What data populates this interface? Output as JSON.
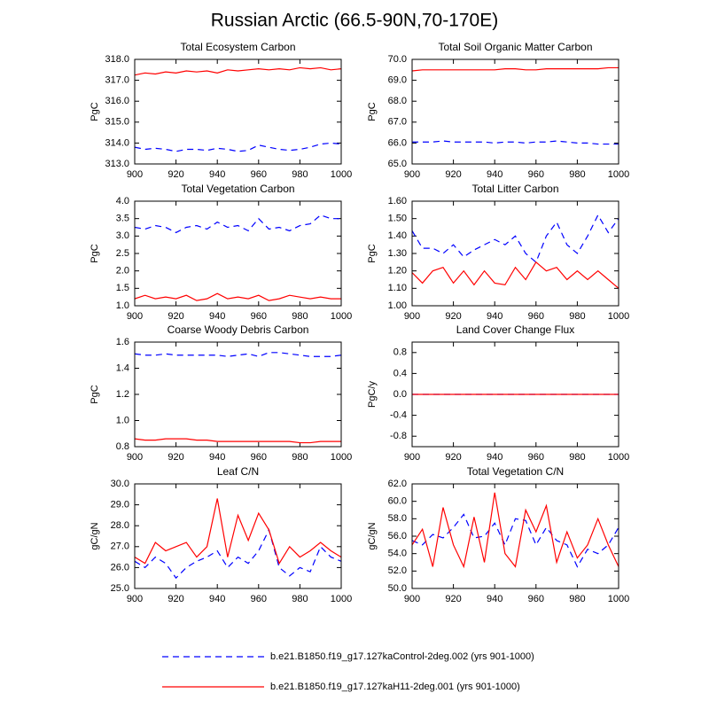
{
  "title": "Russian Arctic (66.5-90N,70-170E)",
  "chart_data": [
    {
      "type": "line",
      "title": "Total Ecosystem Carbon",
      "y_label": "PgC",
      "x": [
        900,
        905,
        910,
        915,
        920,
        925,
        930,
        935,
        940,
        945,
        950,
        955,
        960,
        965,
        970,
        975,
        980,
        985,
        990,
        995,
        1000
      ],
      "xlim": [
        900,
        1000
      ],
      "xticks": [
        900,
        920,
        940,
        960,
        980,
        1000
      ],
      "ylim": [
        313,
        318
      ],
      "yticks": [
        {
          "value": 313,
          "label": "313.0"
        },
        {
          "value": 314,
          "label": "314.0"
        },
        {
          "value": 315,
          "label": "315.0"
        },
        {
          "value": 316,
          "label": "316.0"
        },
        {
          "value": 317,
          "label": "317.0"
        },
        {
          "value": 318,
          "label": "318.0"
        }
      ],
      "series": [
        {
          "name": "b.e21.B1850.f19_g17.127kaControl-2deg.002 (yrs 901-1000)",
          "color": "#0000ff",
          "line_style": "dashed",
          "values": [
            313.8,
            313.7,
            313.75,
            313.7,
            313.6,
            313.7,
            313.7,
            313.65,
            313.75,
            313.7,
            313.6,
            313.65,
            313.9,
            313.8,
            313.7,
            313.65,
            313.7,
            313.8,
            313.95,
            314.0,
            313.95
          ]
        },
        {
          "name": "b.e21.B1850.f19_g17.127kaH11-2deg.001 (yrs 901-1000)",
          "color": "#ff0000",
          "line_style": "solid",
          "values": [
            317.25,
            317.35,
            317.3,
            317.4,
            317.35,
            317.45,
            317.4,
            317.45,
            317.35,
            317.5,
            317.45,
            317.5,
            317.55,
            317.5,
            317.55,
            317.5,
            317.6,
            317.55,
            317.6,
            317.5,
            317.55
          ]
        }
      ]
    },
    {
      "type": "line",
      "title": "Total Soil Organic Matter Carbon",
      "y_label": "PgC",
      "x": [
        900,
        905,
        910,
        915,
        920,
        925,
        930,
        935,
        940,
        945,
        950,
        955,
        960,
        965,
        970,
        975,
        980,
        985,
        990,
        995,
        1000
      ],
      "xlim": [
        900,
        1000
      ],
      "xticks": [
        900,
        920,
        940,
        960,
        980,
        1000
      ],
      "ylim": [
        65,
        70
      ],
      "yticks": [
        {
          "value": 65,
          "label": "65.0"
        },
        {
          "value": 66,
          "label": "66.0"
        },
        {
          "value": 67,
          "label": "67.0"
        },
        {
          "value": 68,
          "label": "68.0"
        },
        {
          "value": 69,
          "label": "69.0"
        },
        {
          "value": 70,
          "label": "70.0"
        }
      ],
      "series": [
        {
          "name": "b.e21.B1850.f19_g17.127kaControl-2deg.002 (yrs 901-1000)",
          "color": "#0000ff",
          "line_style": "dashed",
          "values": [
            66.05,
            66.05,
            66.05,
            66.1,
            66.05,
            66.05,
            66.05,
            66.05,
            66.0,
            66.05,
            66.05,
            66.0,
            66.05,
            66.05,
            66.1,
            66.05,
            66.0,
            66.0,
            65.95,
            65.95,
            65.95
          ]
        },
        {
          "name": "b.e21.B1850.f19_g17.127kaH11-2deg.001 (yrs 901-1000)",
          "color": "#ff0000",
          "line_style": "solid",
          "values": [
            69.45,
            69.5,
            69.5,
            69.5,
            69.5,
            69.5,
            69.5,
            69.5,
            69.5,
            69.55,
            69.55,
            69.5,
            69.5,
            69.55,
            69.55,
            69.55,
            69.55,
            69.55,
            69.55,
            69.6,
            69.6
          ]
        }
      ]
    },
    {
      "type": "line",
      "title": "Total Vegetation Carbon",
      "y_label": "PgC",
      "x": [
        900,
        905,
        910,
        915,
        920,
        925,
        930,
        935,
        940,
        945,
        950,
        955,
        960,
        965,
        970,
        975,
        980,
        985,
        990,
        995,
        1000
      ],
      "xlim": [
        900,
        1000
      ],
      "xticks": [
        900,
        920,
        940,
        960,
        980,
        1000
      ],
      "ylim": [
        1,
        4
      ],
      "yticks": [
        {
          "value": 1,
          "label": "1.0"
        },
        1.5,
        {
          "value": 2,
          "label": "2.0"
        },
        2.5,
        {
          "value": 3,
          "label": "3.0"
        },
        3.5,
        {
          "value": 4,
          "label": "4.0"
        }
      ],
      "series": [
        {
          "name": "b.e21.B1850.f19_g17.127kaControl-2deg.002 (yrs 901-1000)",
          "color": "#0000ff",
          "line_style": "dashed",
          "values": [
            3.25,
            3.2,
            3.3,
            3.25,
            3.1,
            3.25,
            3.3,
            3.2,
            3.4,
            3.25,
            3.3,
            3.15,
            3.5,
            3.2,
            3.25,
            3.15,
            3.3,
            3.35,
            3.6,
            3.5,
            3.5
          ]
        },
        {
          "name": "b.e21.B1850.f19_g17.127kaH11-2deg.001 (yrs 901-1000)",
          "color": "#ff0000",
          "line_style": "solid",
          "values": [
            1.2,
            1.3,
            1.2,
            1.25,
            1.2,
            1.3,
            1.15,
            1.2,
            1.35,
            1.2,
            1.25,
            1.2,
            1.3,
            1.15,
            1.2,
            1.3,
            1.25,
            1.2,
            1.25,
            1.2,
            1.2
          ]
        }
      ]
    },
    {
      "type": "line",
      "title": "Total Litter Carbon",
      "y_label": "PgC",
      "x": [
        900,
        905,
        910,
        915,
        920,
        925,
        930,
        935,
        940,
        945,
        950,
        955,
        960,
        965,
        970,
        975,
        980,
        985,
        990,
        995,
        1000
      ],
      "xlim": [
        900,
        1000
      ],
      "xticks": [
        900,
        920,
        940,
        960,
        980,
        1000
      ],
      "ylim": [
        1.0,
        1.6
      ],
      "yticks": [
        {
          "value": 1.0,
          "label": "1.00"
        },
        {
          "value": 1.1,
          "label": "1.10"
        },
        {
          "value": 1.2,
          "label": "1.20"
        },
        {
          "value": 1.3,
          "label": "1.30"
        },
        {
          "value": 1.4,
          "label": "1.40"
        },
        {
          "value": 1.5,
          "label": "1.50"
        },
        {
          "value": 1.6,
          "label": "1.60"
        }
      ],
      "series": [
        {
          "name": "b.e21.B1850.f19_g17.127kaControl-2deg.002 (yrs 901-1000)",
          "color": "#0000ff",
          "line_style": "dashed",
          "values": [
            1.43,
            1.33,
            1.33,
            1.3,
            1.35,
            1.28,
            1.32,
            1.35,
            1.38,
            1.35,
            1.4,
            1.3,
            1.25,
            1.4,
            1.48,
            1.35,
            1.3,
            1.4,
            1.52,
            1.42,
            1.5
          ]
        },
        {
          "name": "b.e21.B1850.f19_g17.127kaH11-2deg.001 (yrs 901-1000)",
          "color": "#ff0000",
          "line_style": "solid",
          "values": [
            1.19,
            1.13,
            1.2,
            1.22,
            1.13,
            1.2,
            1.12,
            1.2,
            1.13,
            1.12,
            1.22,
            1.15,
            1.25,
            1.2,
            1.22,
            1.15,
            1.2,
            1.15,
            1.2,
            1.15,
            1.1
          ]
        }
      ]
    },
    {
      "type": "line",
      "title": "Coarse Woody Debris Carbon",
      "y_label": "PgC",
      "x": [
        900,
        905,
        910,
        915,
        920,
        925,
        930,
        935,
        940,
        945,
        950,
        955,
        960,
        965,
        970,
        975,
        980,
        985,
        990,
        995,
        1000
      ],
      "xlim": [
        900,
        1000
      ],
      "xticks": [
        900,
        920,
        940,
        960,
        980,
        1000
      ],
      "ylim": [
        0.8,
        1.6
      ],
      "yticks": [
        0.8,
        {
          "value": 1.0,
          "label": "1.0"
        },
        1.2,
        1.4,
        1.6
      ],
      "series": [
        {
          "name": "b.e21.B1850.f19_g17.127kaControl-2deg.002 (yrs 901-1000)",
          "color": "#0000ff",
          "line_style": "dashed",
          "values": [
            1.51,
            1.5,
            1.5,
            1.51,
            1.5,
            1.5,
            1.5,
            1.5,
            1.5,
            1.49,
            1.5,
            1.51,
            1.49,
            1.52,
            1.52,
            1.51,
            1.5,
            1.49,
            1.49,
            1.49,
            1.5
          ]
        },
        {
          "name": "b.e21.B1850.f19_g17.127kaH11-2deg.001 (yrs 901-1000)",
          "color": "#ff0000",
          "line_style": "solid",
          "values": [
            0.86,
            0.85,
            0.85,
            0.86,
            0.86,
            0.86,
            0.85,
            0.85,
            0.84,
            0.84,
            0.84,
            0.84,
            0.84,
            0.84,
            0.84,
            0.84,
            0.83,
            0.83,
            0.84,
            0.84,
            0.84
          ]
        }
      ]
    },
    {
      "type": "line",
      "title": "Land Cover Change Flux",
      "y_label": "PgC/y",
      "x": [
        900,
        905,
        910,
        915,
        920,
        925,
        930,
        935,
        940,
        945,
        950,
        955,
        960,
        965,
        970,
        975,
        980,
        985,
        990,
        995,
        1000
      ],
      "xlim": [
        900,
        1000
      ],
      "xticks": [
        900,
        920,
        940,
        960,
        980,
        1000
      ],
      "ylim": [
        -1,
        1
      ],
      "yticks": [
        -0.8,
        -0.4,
        {
          "value": 0,
          "label": "0.0"
        },
        0.4,
        0.8
      ],
      "series": [
        {
          "name": "b.e21.B1850.f19_g17.127kaControl-2deg.002 (yrs 901-1000)",
          "color": "#0000ff",
          "line_style": "dashed",
          "values": [
            0,
            0,
            0,
            0,
            0,
            0,
            0,
            0,
            0,
            0,
            0,
            0,
            0,
            0,
            0,
            0,
            0,
            0,
            0,
            0,
            0
          ]
        },
        {
          "name": "b.e21.B1850.f19_g17.127kaH11-2deg.001 (yrs 901-1000)",
          "color": "#ff0000",
          "line_style": "solid",
          "values": [
            0,
            0,
            0,
            0,
            0,
            0,
            0,
            0,
            0,
            0,
            0,
            0,
            0,
            0,
            0,
            0,
            0,
            0,
            0,
            0,
            0
          ]
        }
      ]
    },
    {
      "type": "line",
      "title": "Leaf C/N",
      "y_label": "gC/gN",
      "x": [
        900,
        905,
        910,
        915,
        920,
        925,
        930,
        935,
        940,
        945,
        950,
        955,
        960,
        965,
        970,
        975,
        980,
        985,
        990,
        995,
        1000
      ],
      "xlim": [
        900,
        1000
      ],
      "xticks": [
        900,
        920,
        940,
        960,
        980,
        1000
      ],
      "ylim": [
        25,
        30
      ],
      "yticks": [
        {
          "value": 25,
          "label": "25.0"
        },
        {
          "value": 26,
          "label": "26.0"
        },
        {
          "value": 27,
          "label": "27.0"
        },
        {
          "value": 28,
          "label": "28.0"
        },
        {
          "value": 29,
          "label": "29.0"
        },
        {
          "value": 30,
          "label": "30.0"
        }
      ],
      "series": [
        {
          "name": "b.e21.B1850.f19_g17.127kaControl-2deg.002 (yrs 901-1000)",
          "color": "#0000ff",
          "line_style": "dashed",
          "values": [
            26.3,
            26.0,
            26.5,
            26.2,
            25.5,
            26.0,
            26.3,
            26.5,
            26.8,
            26.0,
            26.5,
            26.2,
            26.8,
            27.8,
            26.0,
            25.6,
            26.0,
            25.8,
            27.0,
            26.5,
            26.3
          ]
        },
        {
          "name": "b.e21.B1850.f19_g17.127kaH11-2deg.001 (yrs 901-1000)",
          "color": "#ff0000",
          "line_style": "solid",
          "values": [
            26.5,
            26.2,
            27.2,
            26.8,
            27.0,
            27.2,
            26.5,
            27.0,
            29.3,
            26.5,
            28.5,
            27.3,
            28.6,
            27.8,
            26.2,
            27.0,
            26.5,
            26.8,
            27.2,
            26.8,
            26.5
          ]
        }
      ]
    },
    {
      "type": "line",
      "title": "Total Vegetation C/N",
      "y_label": "gC/gN",
      "x": [
        900,
        905,
        910,
        915,
        920,
        925,
        930,
        935,
        940,
        945,
        950,
        955,
        960,
        965,
        970,
        975,
        980,
        985,
        990,
        995,
        1000
      ],
      "xlim": [
        900,
        1000
      ],
      "xticks": [
        900,
        920,
        940,
        960,
        980,
        1000
      ],
      "ylim": [
        50,
        62
      ],
      "yticks": [
        {
          "value": 50,
          "label": "50.0"
        },
        {
          "value": 52,
          "label": "52.0"
        },
        {
          "value": 54,
          "label": "54.0"
        },
        {
          "value": 56,
          "label": "56.0"
        },
        {
          "value": 58,
          "label": "58.0"
        },
        {
          "value": 60,
          "label": "60.0"
        },
        {
          "value": 62,
          "label": "62.0"
        }
      ],
      "series": [
        {
          "name": "b.e21.B1850.f19_g17.127kaControl-2deg.002 (yrs 901-1000)",
          "color": "#0000ff",
          "line_style": "dashed",
          "values": [
            55.5,
            55.0,
            56.2,
            55.8,
            57.0,
            58.5,
            55.8,
            56.0,
            57.5,
            55.0,
            58.0,
            57.8,
            55.0,
            57.0,
            55.5,
            55.0,
            52.5,
            54.5,
            54.0,
            55.0,
            57.0
          ]
        },
        {
          "name": "b.e21.B1850.f19_g17.127kaH11-2deg.001 (yrs 901-1000)",
          "color": "#ff0000",
          "line_style": "solid",
          "values": [
            55.0,
            56.8,
            52.5,
            59.3,
            55.0,
            52.5,
            58.2,
            53.0,
            61.0,
            54.0,
            52.5,
            59.0,
            56.5,
            59.5,
            53.0,
            56.5,
            53.5,
            55.0,
            58.0,
            55.0,
            52.5
          ]
        }
      ]
    }
  ]
}
